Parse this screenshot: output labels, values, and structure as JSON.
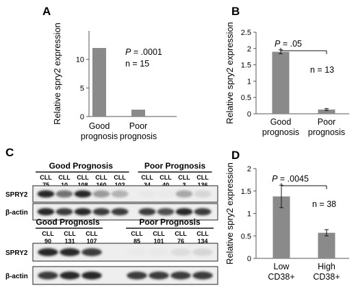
{
  "panel_labels": {
    "a": "A",
    "b": "B",
    "c": "C",
    "d": "D"
  },
  "chart_data": [
    {
      "panel": "A",
      "type": "bar",
      "categories": [
        [
          "Good",
          "prognosis"
        ],
        [
          "Poor",
          "prognosis"
        ]
      ],
      "values": [
        12,
        1.2
      ],
      "ylabel": "Relative spry2 expression",
      "yticks": [
        0,
        5,
        10
      ],
      "ylim": [
        0,
        15
      ],
      "annotations": {
        "p_prefix": "P",
        "p_value": " = .0001",
        "n": "n = 15"
      },
      "bar_color": "#8a8a8a"
    },
    {
      "panel": "B",
      "type": "bar",
      "categories": [
        [
          "Good",
          "prognosis"
        ],
        [
          "Poor",
          "prognosis"
        ]
      ],
      "values": [
        1.9,
        0.13
      ],
      "errors": [
        0.06,
        0.03
      ],
      "ylabel": "Relative spry2 expression",
      "yticks": [
        0,
        0.5,
        1,
        1.5,
        2,
        2.5
      ],
      "ytick_labels": [
        "0",
        "0.5",
        "1",
        "1.5",
        "2",
        "2.5"
      ],
      "ylim": [
        0,
        2.5
      ],
      "annotations": {
        "p_prefix": "P",
        "p_value": " = .05",
        "n": "n = 13"
      },
      "bar_color": "#8a8a8a"
    },
    {
      "panel": "D",
      "type": "bar",
      "categories": [
        [
          "Low",
          "CD38+"
        ],
        [
          "High",
          "CD38+"
        ]
      ],
      "values": [
        1.38,
        0.57
      ],
      "errors": [
        0.25,
        0.07
      ],
      "ylabel": "Relative spry2 expression",
      "yticks": [
        0,
        0.5,
        1,
        1.5,
        2
      ],
      "ytick_labels": [
        "0",
        "0.5",
        "1",
        "1.5",
        "2"
      ],
      "ylim": [
        0,
        2
      ],
      "annotations": {
        "p_prefix": "P",
        "p_value": " = .0045",
        "n": "n = 38"
      },
      "bar_color": "#8a8a8a"
    }
  ],
  "blot": {
    "top": {
      "good_title": "Good Prognosis",
      "poor_title": "Poor Prognosis",
      "lane_prefix": "CLL",
      "good_lanes": [
        "75",
        "10",
        "108",
        "160",
        "102"
      ],
      "poor_lanes": [
        "34",
        "40",
        "3",
        "136"
      ],
      "rows": [
        "SPRY2",
        "β-actin"
      ],
      "spry2_intensity": [
        0.95,
        0.75,
        0.95,
        0.6,
        0.5,
        0.1,
        0.05,
        0.55,
        0.3
      ],
      "actin_intensity": [
        0.95,
        0.9,
        0.95,
        0.9,
        0.9,
        0.9,
        0.85,
        0.95,
        0.9
      ]
    },
    "bottom": {
      "good_title": "Good Prognosis",
      "poor_title": "Poor Prognosis",
      "lane_prefix": "CLL",
      "good_lanes": [
        "90",
        "131",
        "107"
      ],
      "poor_lanes": [
        "85",
        "101",
        "76",
        "134"
      ],
      "rows": [
        "SPRY2",
        "β-actin"
      ],
      "spry2_intensity": [
        0.95,
        0.95,
        0.9,
        0.05,
        0.1,
        0.25,
        0.3
      ],
      "actin_intensity": [
        0.9,
        0.95,
        0.95,
        0.9,
        0.9,
        0.9,
        0.9
      ]
    }
  }
}
